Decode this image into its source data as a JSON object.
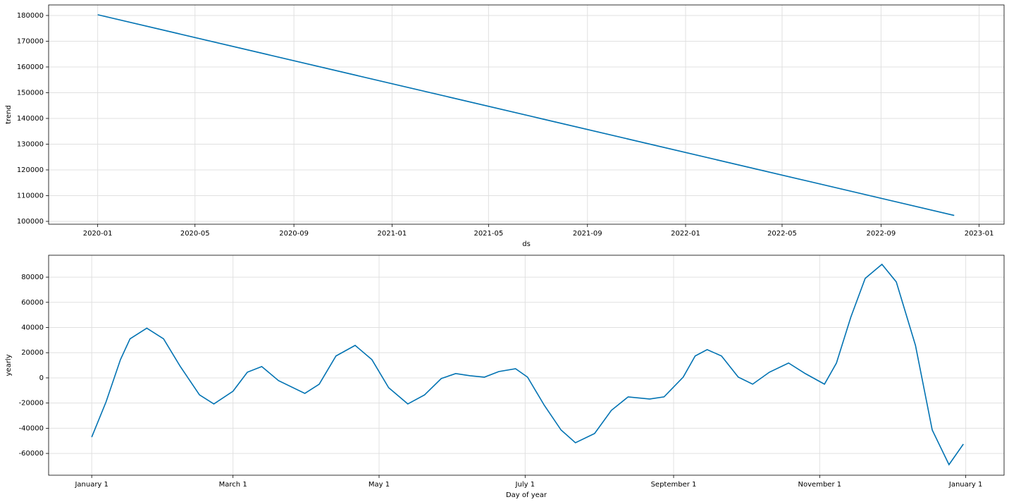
{
  "chart_data": [
    {
      "type": "line",
      "x_label": "ds",
      "y_label": "trend",
      "color": "#0072B2",
      "grid": true,
      "x": [
        "2020-01",
        "2022-12"
      ],
      "values": [
        180300,
        102300
      ],
      "xlim": [
        "2019-11",
        "2023-02"
      ],
      "xticks": [
        "2020-01",
        "2020-05",
        "2020-09",
        "2021-01",
        "2021-05",
        "2021-09",
        "2022-01",
        "2022-05",
        "2022-09",
        "2023-01"
      ],
      "ylim": [
        98900,
        184100
      ],
      "yticks": [
        100000,
        110000,
        120000,
        130000,
        140000,
        150000,
        160000,
        170000,
        180000
      ]
    },
    {
      "type": "line",
      "x_label": "Day of year",
      "y_label": "yearly",
      "color": "#0072B2",
      "grid": true,
      "x": [
        0,
        6,
        12,
        16,
        23,
        30,
        37,
        45,
        51,
        59,
        65,
        71,
        78,
        89,
        95,
        102,
        110,
        117,
        124,
        132,
        139,
        146,
        152,
        158,
        164,
        170,
        177,
        182,
        189,
        196,
        202,
        210,
        217,
        224,
        233,
        239,
        247,
        252,
        257,
        263,
        270,
        276,
        283,
        291,
        298,
        306,
        311,
        317,
        323,
        330,
        336,
        344,
        351,
        358,
        364
      ],
      "values": [
        -47000,
        -19000,
        14500,
        31000,
        39500,
        31000,
        9000,
        -13500,
        -20700,
        -10600,
        4500,
        9000,
        -2200,
        -12300,
        -5000,
        17400,
        25800,
        14500,
        -7800,
        -20700,
        -13500,
        -500,
        3400,
        1700,
        600,
        5000,
        7300,
        600,
        -21800,
        -41400,
        -51500,
        -44200,
        -25800,
        -15100,
        -16800,
        -15100,
        600,
        17400,
        22400,
        17400,
        600,
        -5000,
        4500,
        11800,
        3400,
        -5000,
        11800,
        48200,
        79000,
        90200,
        76200,
        25800,
        -41400,
        -68900,
        -52600
      ],
      "xlim": [
        -18,
        381
      ],
      "xticks": [
        {
          "value": 0,
          "label": "January 1"
        },
        {
          "value": 59,
          "label": "March 1"
        },
        {
          "value": 120,
          "label": "May 1"
        },
        {
          "value": 181,
          "label": "July 1"
        },
        {
          "value": 243,
          "label": "September 1"
        },
        {
          "value": 304,
          "label": "November 1"
        },
        {
          "value": 365,
          "label": "January 1"
        }
      ],
      "ylim": [
        -77300,
        97400
      ],
      "yticks": [
        -60000,
        -40000,
        -20000,
        0,
        20000,
        40000,
        60000,
        80000
      ]
    }
  ]
}
